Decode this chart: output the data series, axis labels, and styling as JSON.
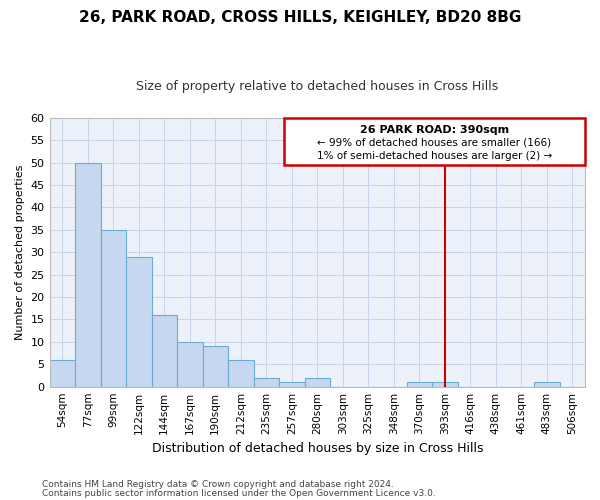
{
  "title": "26, PARK ROAD, CROSS HILLS, KEIGHLEY, BD20 8BG",
  "subtitle": "Size of property relative to detached houses in Cross Hills",
  "xlabel": "Distribution of detached houses by size in Cross Hills",
  "ylabel": "Number of detached properties",
  "bins": [
    "54sqm",
    "77sqm",
    "99sqm",
    "122sqm",
    "144sqm",
    "167sqm",
    "190sqm",
    "212sqm",
    "235sqm",
    "257sqm",
    "280sqm",
    "303sqm",
    "325sqm",
    "348sqm",
    "370sqm",
    "393sqm",
    "416sqm",
    "438sqm",
    "461sqm",
    "483sqm",
    "506sqm"
  ],
  "values": [
    6,
    50,
    35,
    29,
    16,
    10,
    9,
    6,
    2,
    1,
    2,
    0,
    0,
    0,
    1,
    1,
    0,
    0,
    0,
    1,
    0
  ],
  "bar_color": "#c5d8f0",
  "bar_edge_color": "#6aaad4",
  "red_line_index": 15,
  "annotation_title": "26 PARK ROAD: 390sqm",
  "annotation_line1": "← 99% of detached houses are smaller (166)",
  "annotation_line2": "1% of semi-detached houses are larger (2) →",
  "annotation_box_color": "#ffffff",
  "annotation_box_edge": "#cc0000",
  "ylim": [
    0,
    60
  ],
  "yticks": [
    0,
    5,
    10,
    15,
    20,
    25,
    30,
    35,
    40,
    45,
    50,
    55,
    60
  ],
  "grid_color": "#c8d4e8",
  "background_color": "#edf2fa",
  "footer1": "Contains HM Land Registry data © Crown copyright and database right 2024.",
  "footer2": "Contains public sector information licensed under the Open Government Licence v3.0.",
  "red_line_color": "#cc0000",
  "title_fontsize": 11,
  "subtitle_fontsize": 9,
  "xlabel_fontsize": 9,
  "ylabel_fontsize": 8
}
